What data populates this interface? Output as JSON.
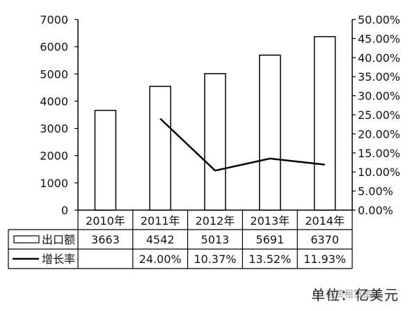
{
  "chart_data": {
    "type": "bar",
    "categories": [
      "2010年",
      "2011年",
      "2012年",
      "2013年",
      "2014年"
    ],
    "series": [
      {
        "name": "出口额",
        "type": "bar",
        "axis": "left",
        "values": [
          3663,
          4542,
          5013,
          5691,
          6370
        ]
      },
      {
        "name": "增长率",
        "type": "line",
        "axis": "right",
        "values": [
          null,
          24.0,
          10.37,
          13.52,
          11.93
        ]
      }
    ],
    "ylim_left": [
      0,
      7000
    ],
    "ylim_right": [
      0,
      50
    ],
    "left_ticks": [
      "0",
      "1000",
      "2000",
      "3000",
      "4000",
      "5000",
      "6000",
      "7000"
    ],
    "right_ticks": [
      "0.00%",
      "5.00%",
      "10.00%",
      "15.00%",
      "20.00%",
      "25.00%",
      "30.00%",
      "35.00%",
      "40.00%",
      "45.00%",
      "50.00%"
    ],
    "table": {
      "rows": [
        {
          "label": "出口额",
          "cells": [
            "3663",
            "4542",
            "5013",
            "5691",
            "6370"
          ]
        },
        {
          "label": "增长率",
          "cells": [
            "",
            "24.00%",
            "10.37%",
            "13.52%",
            "11.93%"
          ]
        }
      ]
    },
    "grid": false,
    "legend": "data-table"
  },
  "footer": {
    "unit": "单位：亿美元",
    "watermark": "融资租赁资讯"
  }
}
